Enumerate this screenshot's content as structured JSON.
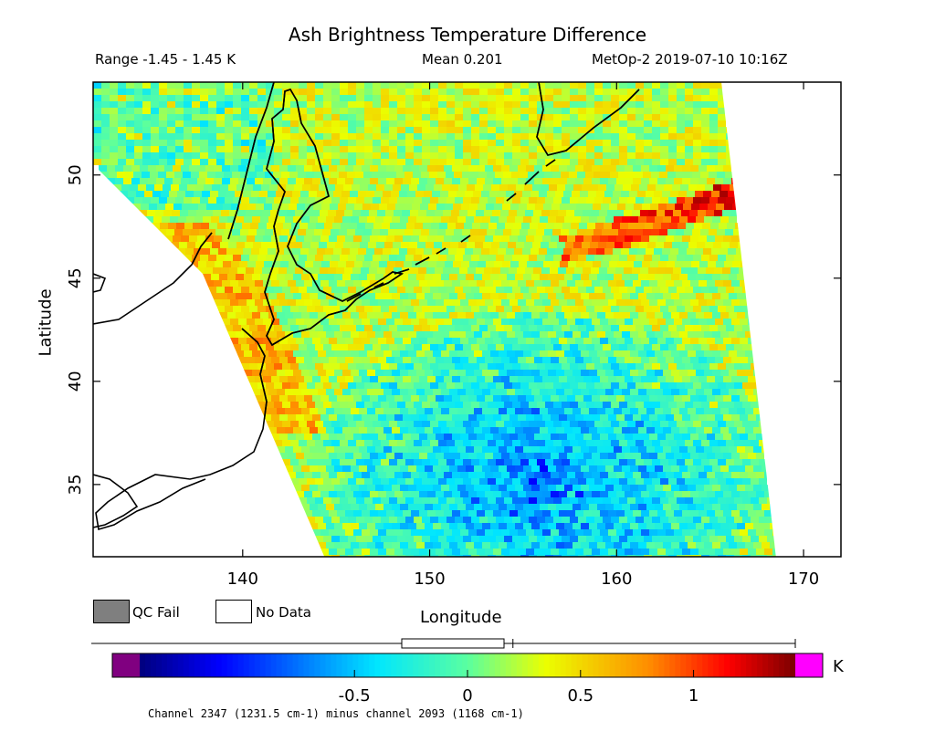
{
  "header": {
    "title": "Ash Brightness Temperature Difference",
    "range": "Range -1.45 - 1.45 K",
    "mean": "Mean 0.201",
    "satellite": "MetOp-2 2019-07-10 10:16Z"
  },
  "legend": {
    "qc_fail": "QC Fail",
    "no_data": "No Data",
    "colors": {
      "qc_fail": "#7f7f7f",
      "no_data": "#ffffff"
    }
  },
  "colorbar": {
    "unit": "K",
    "ticks": [
      "-0.5",
      "0",
      "0.5",
      "1"
    ],
    "range": [
      -1.45,
      1.45
    ],
    "under_color": "#800080",
    "over_color": "#ff00ff"
  },
  "caption": "Channel 2347 (1231.5 cm-1) minus channel 2093 (1168 cm-1)",
  "chart_data": {
    "type": "heatmap",
    "title": "Ash Brightness Temperature Difference",
    "xlabel": "Longitude",
    "ylabel": "Latitude",
    "xlim": [
      132,
      172
    ],
    "ylim": [
      31.5,
      54.5
    ],
    "x_ticks": [
      "140",
      "150",
      "160",
      "170"
    ],
    "y_ticks": [
      "35",
      "40",
      "45",
      "50"
    ],
    "value_range": [
      -1.45,
      1.45
    ],
    "units": "K",
    "mean": 0.201
  }
}
